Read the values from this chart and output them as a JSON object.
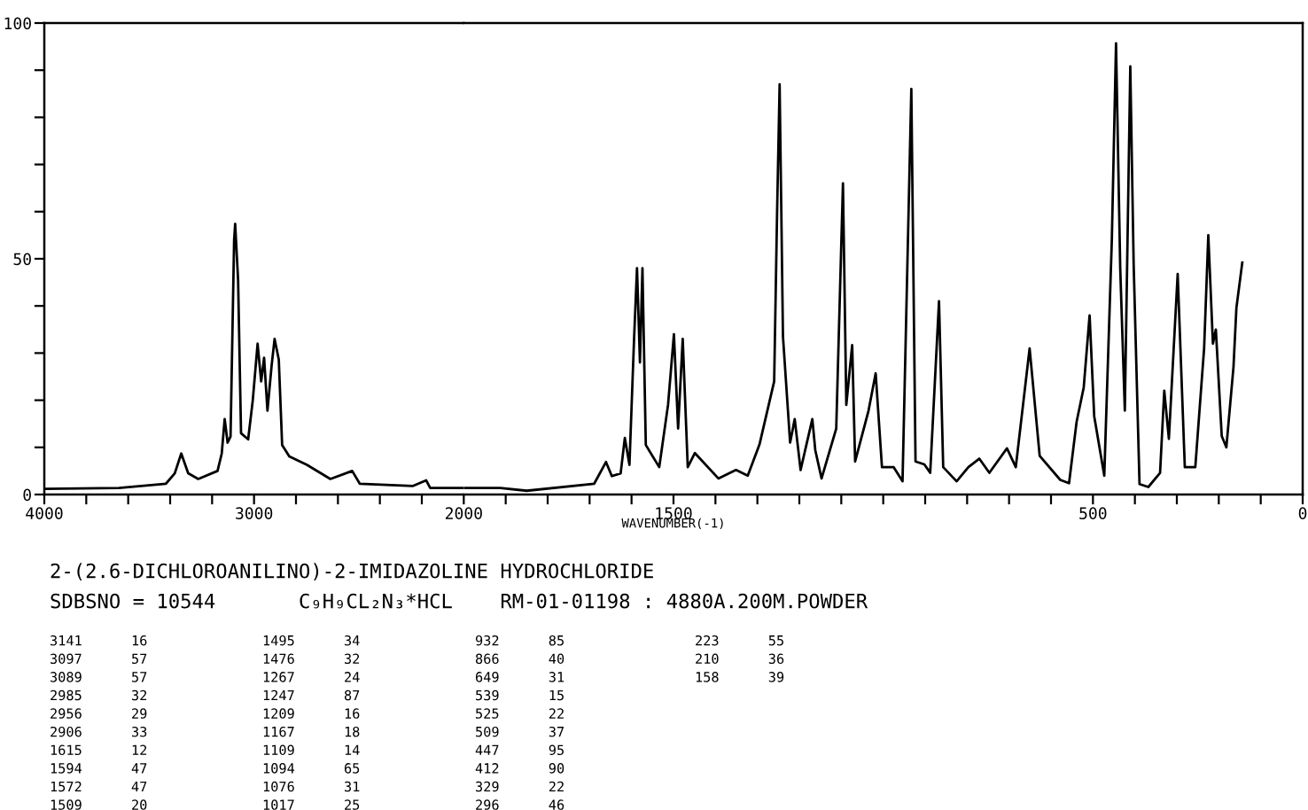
{
  "chart_data": [
    {
      "type": "line",
      "title": "2-(2.6-DICHLOROANILINO)-2-IMIDAZOLINE HYDROCHLORIDE",
      "subtitle": "SDBSNO = 10544       C₉H₉CL₂N₃*HCL    RM-01-01198 : 4880A.200M.POWDER",
      "series": [
        {
          "color": "#000000",
          "x": [
            4000,
            3644,
            3420,
            3378,
            3347,
            3314,
            3266,
            3174,
            3154,
            3140,
            3126,
            3112,
            3095,
            3090,
            3076,
            3062,
            3028,
            3006,
            2983,
            2966,
            2952,
            2936,
            2916,
            2902,
            2882,
            2866,
            2832,
            2748,
            2636,
            2532,
            2496,
            2244,
            2179,
            2160,
            2000
          ],
          "values": [
            1.2,
            1.4,
            2.3,
            4.5,
            8.7,
            4.5,
            3.3,
            5,
            8.7,
            16,
            11,
            12.3,
            54,
            57.4,
            45.5,
            13,
            11.7,
            20,
            32,
            24,
            29,
            17.8,
            27.4,
            33,
            28.6,
            10.5,
            8.1,
            6.3,
            3.3,
            5,
            2.3,
            1.8,
            3,
            1.4,
            1.4
          ]
        }
      ],
      "xlim": [
        4000,
        2000
      ],
      "xticks": [
        4000,
        {
          "value": 3800,
          "label": null
        },
        {
          "value": 3600,
          "label": null
        },
        {
          "value": 3400,
          "label": null
        },
        {
          "value": 3200,
          "label": null
        },
        3000,
        {
          "value": 2800,
          "label": null
        },
        {
          "value": 2600,
          "label": null
        },
        {
          "value": 2400,
          "label": null
        },
        {
          "value": 2200,
          "label": null
        },
        2000
      ],
      "ylim": [
        0,
        100
      ],
      "yticks": [
        0,
        {
          "value": 10,
          "label": null
        },
        {
          "value": 20,
          "label": null
        },
        {
          "value": 30,
          "label": null
        },
        {
          "value": 40,
          "label": null
        },
        50,
        {
          "value": 60,
          "label": null
        },
        {
          "value": 70,
          "label": null
        },
        {
          "value": 80,
          "label": null
        },
        {
          "value": 90,
          "label": null
        },
        100
      ],
      "marker": "none",
      "line_style": "solid",
      "annotations": [
        "3141      16",
        "3097      57",
        "3089      57",
        "2985      32",
        "2956      29",
        "2906      33",
        "1615      12",
        "1594      47",
        "1572      47",
        "1509      20",
        "1495      34",
        "1476      32",
        "1267      24",
        "1247      87",
        "1209      16",
        "1167      18",
        "1109      14",
        "1094      65",
        "1076      31",
        "1017      25",
        "932      85",
        "866      40",
        "649      31",
        "539      15",
        "525      22",
        "509      37",
        "447      95",
        "412      90",
        "329      22",
        "296      46",
        "223      55",
        "210      36",
        "158      39"
      ]
    },
    {
      "type": "line",
      "xlabel": "WAVENUMBER(-1)",
      "series": [
        {
          "color": "#000000",
          "x": [
            2000,
            1913,
            1850,
            1689,
            1661,
            1647,
            1626,
            1616,
            1605,
            1594,
            1587,
            1580,
            1574,
            1566,
            1534,
            1513,
            1499,
            1489,
            1478,
            1466,
            1449,
            1393,
            1351,
            1323,
            1295,
            1260,
            1253,
            1247,
            1239,
            1222,
            1211,
            1197,
            1169,
            1162,
            1147,
            1112,
            1096,
            1088,
            1074,
            1067,
            1035,
            1018,
            1003,
            975,
            954,
            933,
            923,
            902,
            888,
            867,
            857,
            825,
            797,
            771,
            747,
            705,
            684,
            651,
            627,
            578,
            557,
            539,
            522,
            508,
            497,
            473,
            455,
            445,
            435,
            424,
            411,
            403,
            389,
            368,
            340,
            330,
            319,
            298,
            281,
            256,
            235,
            225,
            214,
            207,
            193,
            182,
            165,
            158,
            144
          ],
          "values": [
            1.4,
            1.4,
            0.8,
            2.3,
            6.9,
            3.9,
            4.5,
            12,
            6.3,
            33,
            48,
            28,
            48,
            10.5,
            5.8,
            19,
            34,
            14,
            33,
            5.8,
            8.8,
            3.4,
            5.2,
            4,
            10.6,
            24,
            60,
            87,
            33.5,
            11,
            16,
            5.2,
            16,
            9.4,
            3.4,
            14,
            66,
            19,
            31.7,
            7,
            17.8,
            25.7,
            5.8,
            5.8,
            2.8,
            86,
            7,
            6.4,
            4.6,
            41,
            5.8,
            2.8,
            5.8,
            7.6,
            4.6,
            9.8,
            5.8,
            31,
            8.2,
            3.1,
            2.4,
            15.4,
            22.7,
            38,
            16.6,
            4,
            54,
            95.7,
            48,
            17.8,
            90.8,
            49,
            2.2,
            1.6,
            4.6,
            22,
            11.8,
            46.8,
            5.8,
            5.8,
            31,
            55,
            32,
            35,
            12.4,
            10,
            27,
            39.6,
            49.2
          ]
        }
      ],
      "xlim": [
        2000,
        0
      ],
      "xticks": [
        {
          "value": 1900,
          "label": null
        },
        {
          "value": 1800,
          "label": null
        },
        {
          "value": 1700,
          "label": null
        },
        {
          "value": 1600,
          "label": null
        },
        1500,
        {
          "value": 1400,
          "label": null
        },
        {
          "value": 1300,
          "label": null
        },
        {
          "value": 1200,
          "label": null
        },
        {
          "value": 1100,
          "label": null
        },
        {
          "value": 1000,
          "label": null
        },
        {
          "value": 900,
          "label": null
        },
        {
          "value": 800,
          "label": null
        },
        {
          "value": 700,
          "label": null
        },
        {
          "value": 600,
          "label": null
        },
        500,
        {
          "value": 400,
          "label": null
        },
        {
          "value": 300,
          "label": null
        },
        {
          "value": 200,
          "label": null
        },
        {
          "value": 100,
          "label": null
        },
        0
      ],
      "ylim": [
        0,
        100
      ],
      "tick_labels": "x",
      "marker": "none",
      "line_style": "solid"
    }
  ]
}
